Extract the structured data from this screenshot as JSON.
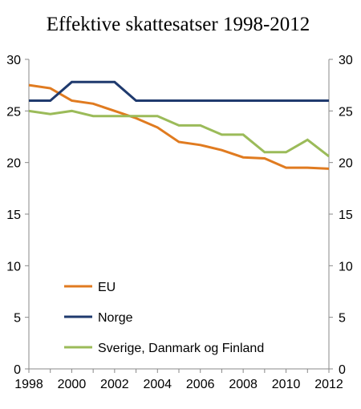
{
  "chart_data": {
    "type": "line",
    "title": "Effektive skattesatser 1998-2012",
    "xlabel": "",
    "ylabel": "",
    "x": [
      1998,
      1999,
      2000,
      2001,
      2002,
      2003,
      2004,
      2005,
      2006,
      2007,
      2008,
      2009,
      2010,
      2011,
      2012
    ],
    "xticks": [
      "1998",
      "2000",
      "2002",
      "2004",
      "2006",
      "2008",
      "2010",
      "2012"
    ],
    "xlim": [
      1998,
      2012
    ],
    "ylim": [
      0,
      30
    ],
    "yticks": [
      "0",
      "5",
      "10",
      "15",
      "20",
      "25",
      "30"
    ],
    "secondary_yticks": [
      "0",
      "5",
      "10",
      "15",
      "20",
      "25",
      "30"
    ],
    "grid": false,
    "legend_position": "bottom-left inside",
    "series": [
      {
        "name": "EU",
        "color": "#E07B20",
        "values": [
          27.5,
          27.2,
          26.0,
          25.7,
          25.0,
          24.3,
          23.4,
          22.0,
          21.7,
          21.2,
          20.5,
          20.4,
          19.5,
          19.5,
          19.4
        ]
      },
      {
        "name": "Norge",
        "color": "#1F3A6E",
        "values": [
          26.0,
          26.0,
          27.8,
          27.8,
          27.8,
          26.0,
          26.0,
          26.0,
          26.0,
          26.0,
          26.0,
          26.0,
          26.0,
          26.0,
          26.0
        ]
      },
      {
        "name": "Sverige, Danmark og Finland",
        "color": "#9BBB59",
        "values": [
          25.0,
          24.7,
          25.0,
          24.5,
          24.5,
          24.5,
          24.5,
          23.6,
          23.6,
          22.7,
          22.7,
          21.0,
          21.0,
          22.2,
          20.6
        ]
      }
    ]
  }
}
